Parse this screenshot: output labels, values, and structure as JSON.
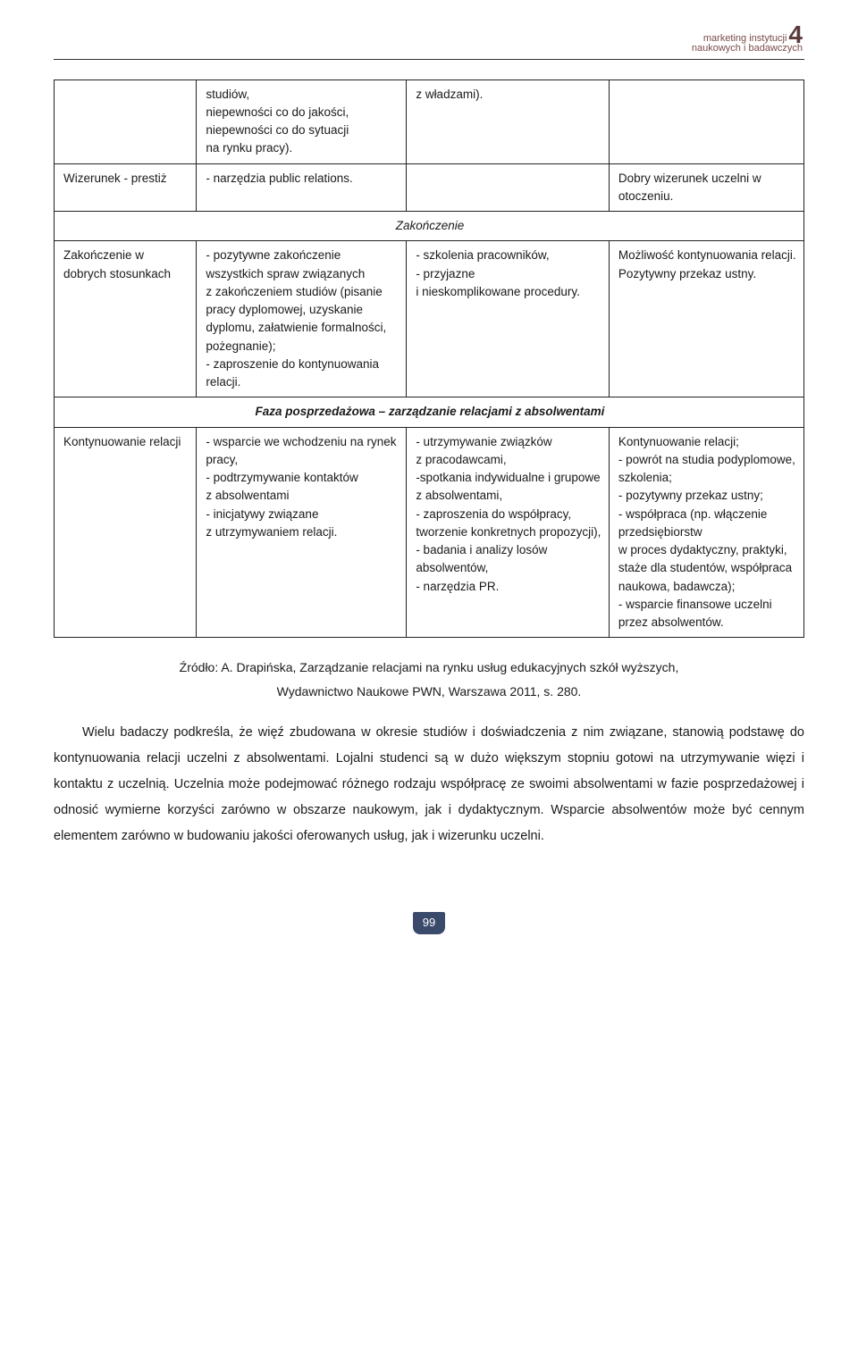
{
  "header": {
    "brand_line1": "marketing instytucji",
    "brand_line2": "naukowych i badawczych",
    "brand_number": "4"
  },
  "table": {
    "columns": [
      "col-a",
      "col-b",
      "col-c",
      "col-d"
    ],
    "rows": [
      {
        "type": "data",
        "cells": [
          "",
          "studiów,\nniepewności co do jakości, niepewności co do sytuacji\nna rynku pracy).",
          "z władzami).",
          ""
        ]
      },
      {
        "type": "data",
        "cells": [
          "Wizerunek - prestiż",
          "- narzędzia public relations.",
          "",
          "Dobry wizerunek uczelni w otoczeniu."
        ]
      },
      {
        "type": "section",
        "label": "Zakończenie",
        "bold": false
      },
      {
        "type": "data",
        "cells": [
          "Zakończenie w dobrych stosunkach",
          "- pozytywne zakończenie wszystkich spraw związanych\nz zakończeniem studiów (pisanie pracy dyplomowej, uzyskanie dyplomu, załatwienie formalności, pożegnanie);\n- zaproszenie do kontynuowania relacji.",
          "- szkolenia pracowników,\n- przyjazne\ni nieskomplikowane procedury.",
          "Możliwość kontynuowania relacji. Pozytywny przekaz ustny."
        ]
      },
      {
        "type": "section",
        "label": "Faza posprzedażowa – zarządzanie relacjami z absolwentami",
        "bold": true
      },
      {
        "type": "data",
        "cells": [
          "Kontynuowanie relacji",
          "- wsparcie we wchodzeniu na rynek pracy,\n- podtrzymywanie kontaktów\nz absolwentami\n- inicjatywy związane\nz utrzymywaniem relacji.",
          "- utrzymywanie związków\nz pracodawcami,\n-spotkania indywidualne i grupowe\nz absolwentami,\n- zaproszenia do współpracy, tworzenie konkretnych propozycji),\n- badania i analizy losów absolwentów,\n- narzędzia PR.",
          "Kontynuowanie relacji;\n- powrót na studia podyplomowe, szkolenia;\n- pozytywny przekaz ustny;\n- współpraca (np. włączenie przedsiębiorstw\nw proces dydaktyczny, praktyki, staże dla studentów, współpraca naukowa, badawcza);\n- wsparcie finansowe uczelni przez absolwentów."
        ]
      }
    ]
  },
  "source": {
    "line1": "Źródło: A. Drapińska, Zarządzanie relacjami na rynku usług edukacyjnych szkół wyższych,",
    "line2": "Wydawnictwo Naukowe PWN, Warszawa 2011, s. 280."
  },
  "paragraph": "Wielu badaczy podkreśla, że więź zbudowana w okresie studiów i doświadczenia z nim związane, stanowią podstawę do kontynuowania relacji uczelni z absolwentami. Lojalni studenci są w dużo większym stopniu gotowi na utrzymywanie więzi i kontaktu z uczelnią. Uczelnia może podejmować różnego rodzaju współpracę ze swoimi absolwentami w fazie posprzedażowej i odnosić wymierne korzyści zarówno w obszarze naukowym, jak i dydaktycznym. Wsparcie absolwentów może być cennym elementem zarówno w budowaniu jakości oferowanych usług, jak i wizerunku uczelni.",
  "page_number": "99",
  "colors": {
    "text": "#1a1a1a",
    "brand_text": "#7a4a4a",
    "brand_number": "#5a3a3a",
    "table_border": "#222222",
    "page_num_bg": "#3a4a6a",
    "page_num_fg": "#ffffff",
    "background": "#ffffff"
  },
  "typography": {
    "body_fontsize_pt": 11,
    "table_fontsize_pt": 10,
    "line_height_body": 2.0,
    "line_height_table": 1.5
  }
}
